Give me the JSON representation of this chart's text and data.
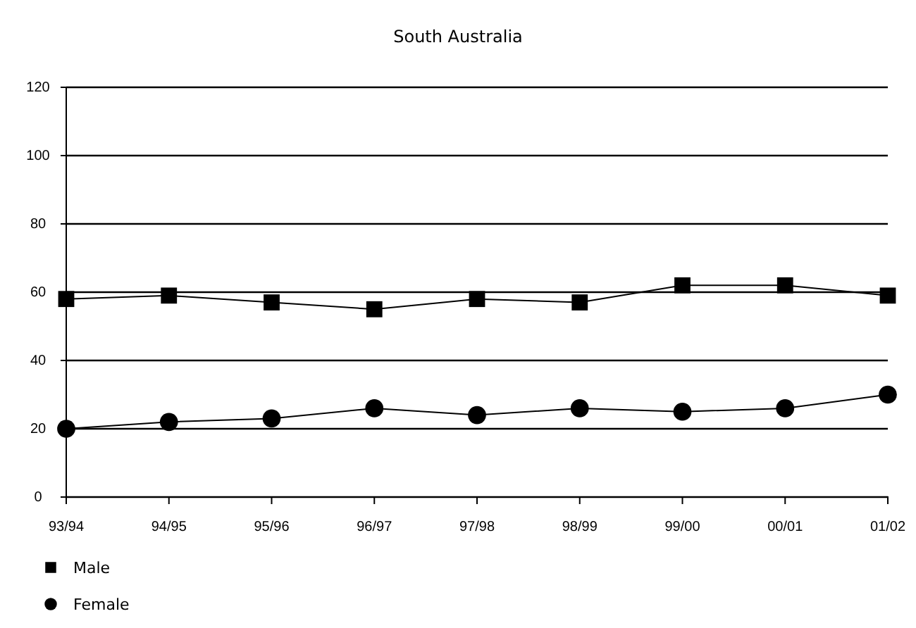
{
  "chart_data": {
    "type": "line",
    "title": "South Australia",
    "categories": [
      "93/94",
      "94/95",
      "95/96",
      "96/97",
      "97/98",
      "98/99",
      "99/00",
      "00/01",
      "01/02"
    ],
    "series": [
      {
        "name": "Male",
        "color": "#000000",
        "marker": "square",
        "values": [
          58,
          59,
          57,
          55,
          58,
          57,
          62,
          62,
          59
        ]
      },
      {
        "name": "Female",
        "color": "#000000",
        "marker": "circle",
        "values": [
          20,
          22,
          23,
          26,
          24,
          26,
          25,
          26,
          30
        ]
      }
    ],
    "ylim": [
      0,
      120
    ],
    "yticks": [
      0,
      20,
      40,
      60,
      80,
      100,
      120
    ],
    "grid": "y",
    "legend": "bottom left"
  }
}
